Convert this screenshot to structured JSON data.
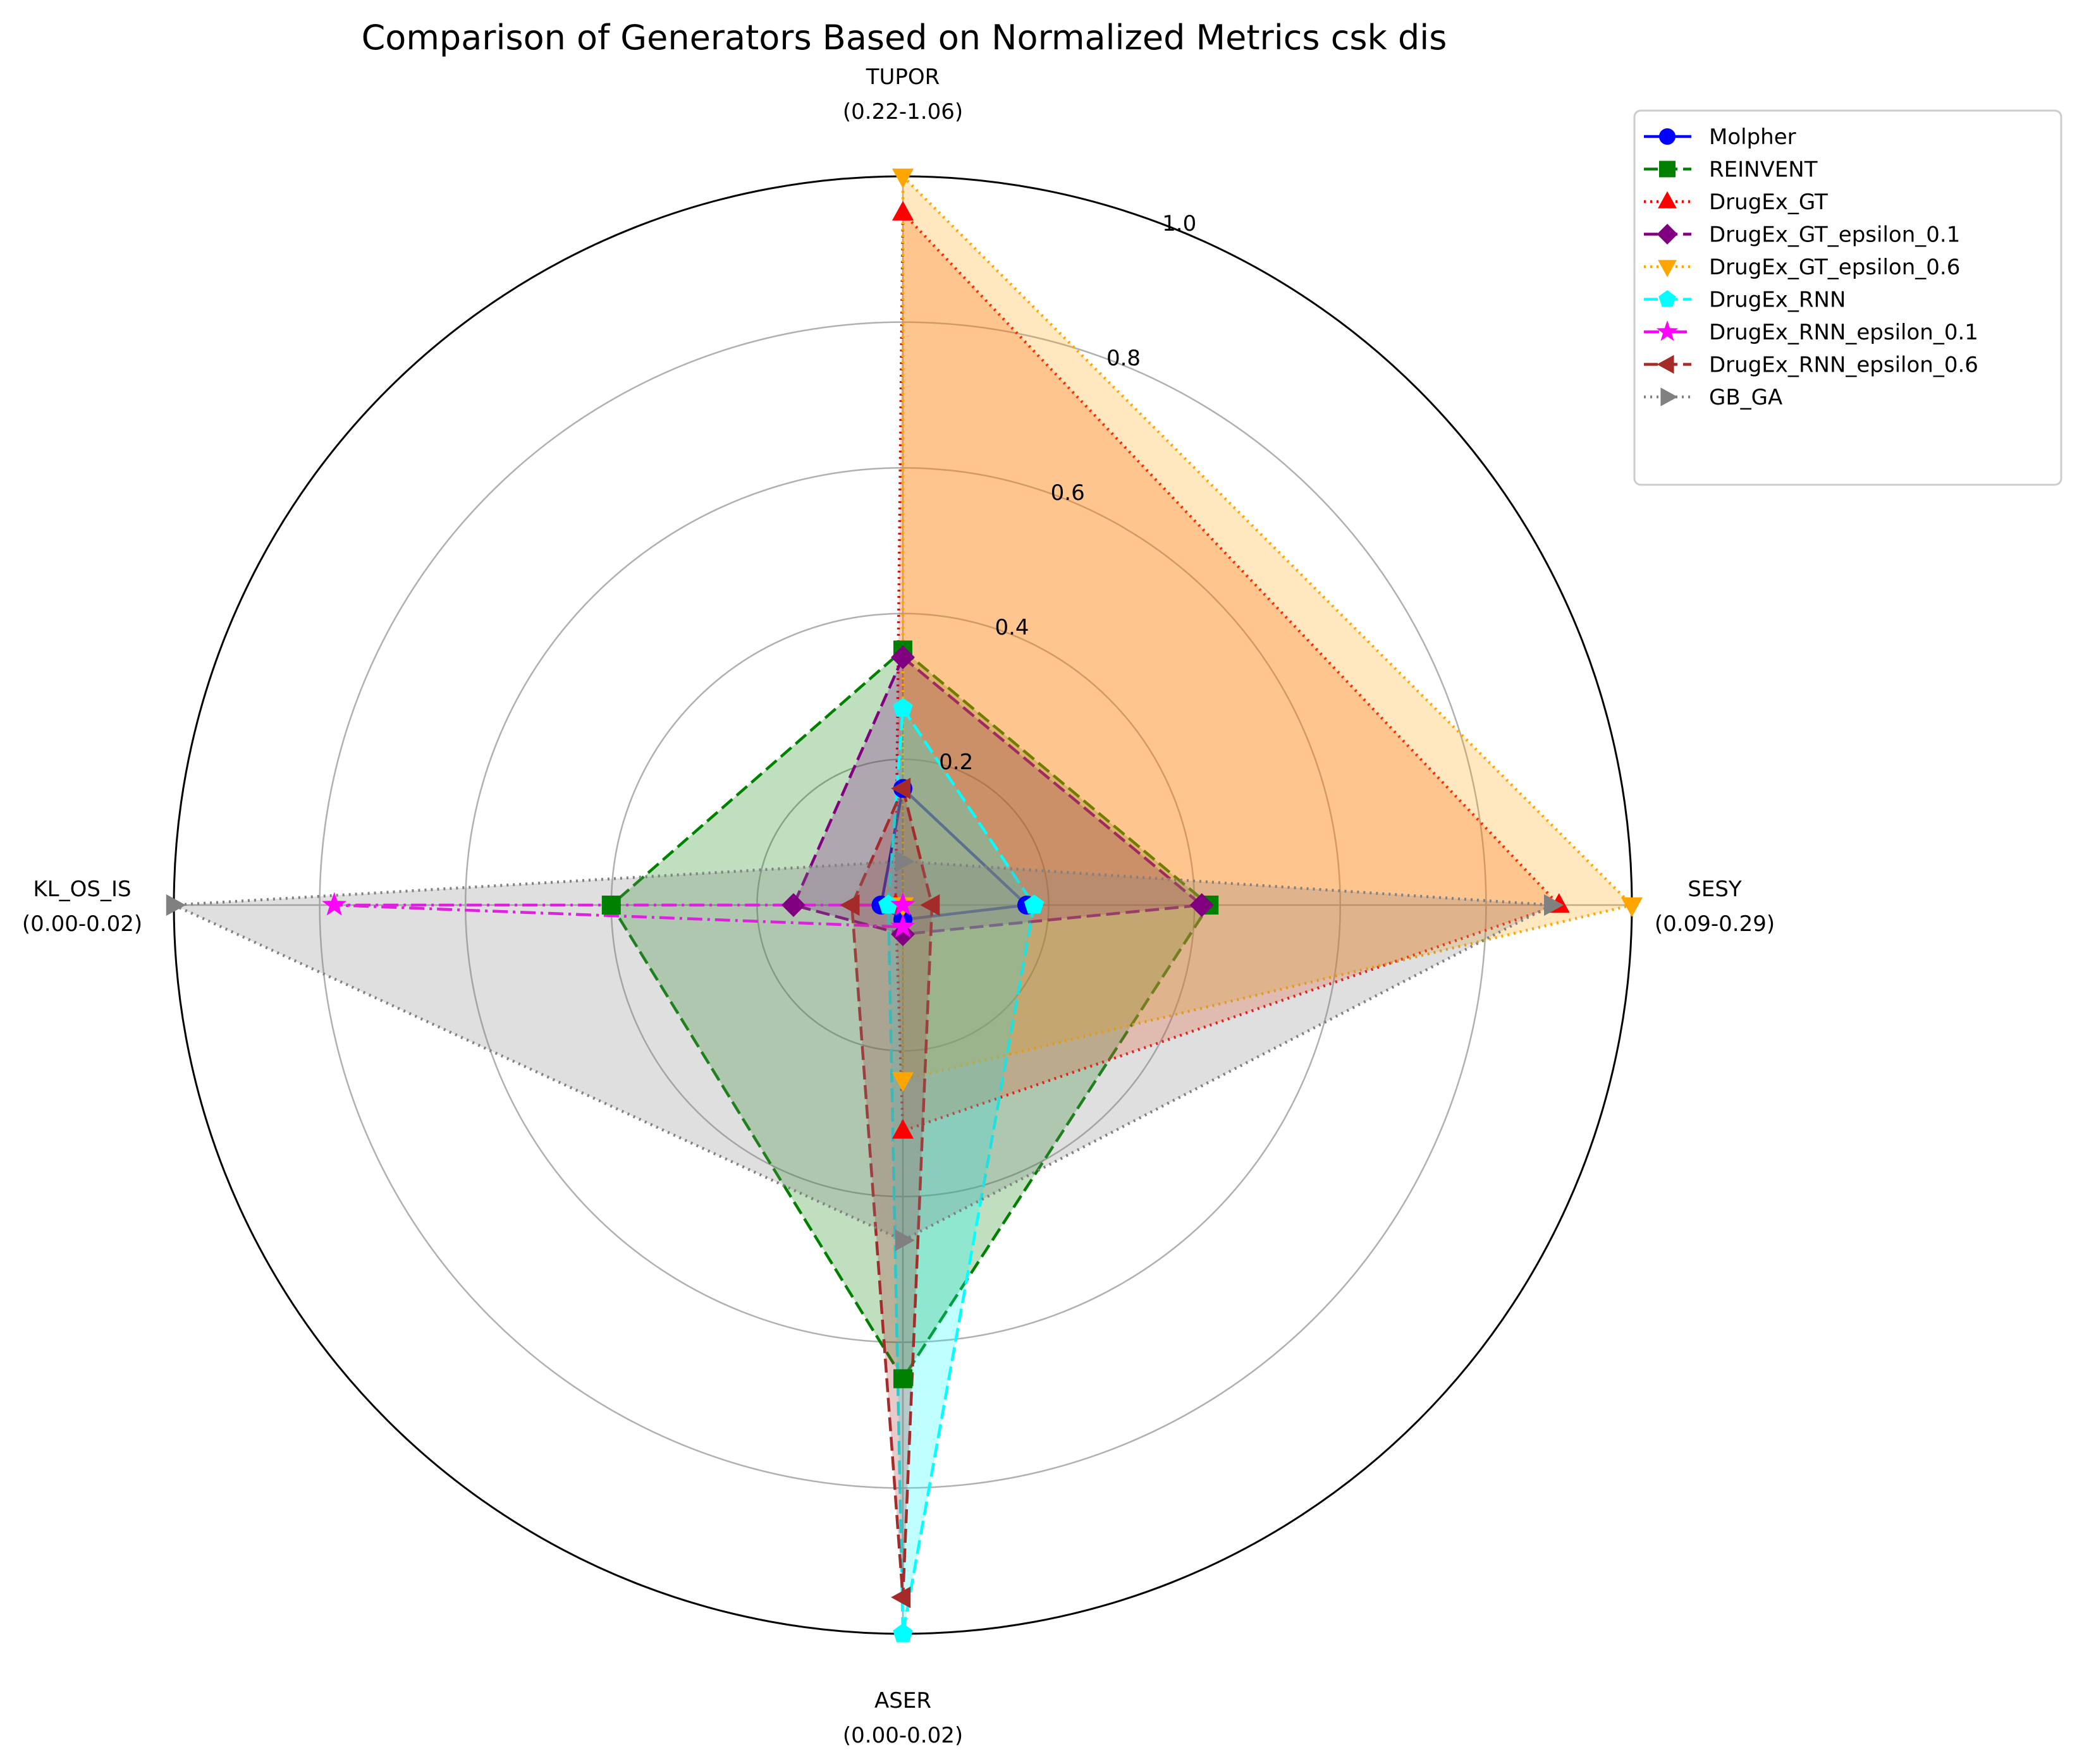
{
  "chart_data": {
    "type": "radar",
    "title": "Comparison of Generators Based on Normalized Metrics csk dis",
    "axes": [
      {
        "name": "TUPOR",
        "range": "(0.22-1.06)"
      },
      {
        "name": "SESY",
        "range": "(0.09-0.29)"
      },
      {
        "name": "ASER",
        "range": "(0.00-0.02)"
      },
      {
        "name": "KL_OS_IS",
        "range": "(0.00-0.02)"
      }
    ],
    "radial_ticks": [
      "0.2",
      "0.4",
      "0.6",
      "0.8",
      "1.0"
    ],
    "radial_range": [
      0,
      1.0
    ],
    "grid": true,
    "legend_position": "upper right, outside plot",
    "series": [
      {
        "name": "Molpher",
        "color": "#0000ff",
        "marker": "circle",
        "line": "solid",
        "values": [
          0.16,
          0.17,
          0.02,
          0.03
        ]
      },
      {
        "name": "REINVENT",
        "color": "#008000",
        "marker": "square",
        "line": "dashed",
        "values": [
          0.35,
          0.42,
          0.65,
          0.4
        ],
        "fill": "#008000"
      },
      {
        "name": "DrugEx_GT",
        "color": "#ff0000",
        "marker": "triangle-up",
        "line": "dotted",
        "values": [
          0.95,
          0.9,
          0.31,
          0.01
        ],
        "fill": "#ff4500"
      },
      {
        "name": "DrugEx_GT_epsilon_0.1",
        "color": "#800080",
        "marker": "diamond",
        "line": "dashed",
        "values": [
          0.34,
          0.41,
          0.04,
          0.15
        ],
        "fill": "#800080"
      },
      {
        "name": "DrugEx_GT_epsilon_0.6",
        "color": "#ffa500",
        "marker": "triangle-down",
        "line": "dotted",
        "values": [
          1.0,
          1.0,
          0.24,
          0.0
        ],
        "fill": "#ffa500"
      },
      {
        "name": "DrugEx_RNN",
        "color": "#00ffff",
        "marker": "pentagon",
        "line": "dashed",
        "values": [
          0.27,
          0.18,
          1.0,
          0.02
        ],
        "fill": "#00ffff"
      },
      {
        "name": "DrugEx_RNN_epsilon_0.1",
        "color": "#ff00ff",
        "marker": "star",
        "line": "dashdot",
        "values": [
          0.0,
          0.0,
          0.03,
          0.78
        ]
      },
      {
        "name": "DrugEx_RNN_epsilon_0.6",
        "color": "#a52a2a",
        "marker": "triangle-left",
        "line": "dashed",
        "values": [
          0.16,
          0.04,
          0.95,
          0.07
        ],
        "fill": "#a52a2a"
      },
      {
        "name": "GB_GA",
        "color": "#808080",
        "marker": "triangle-right",
        "line": "dotted",
        "values": [
          0.06,
          0.89,
          0.46,
          1.0
        ],
        "fill": "#808080"
      }
    ]
  }
}
